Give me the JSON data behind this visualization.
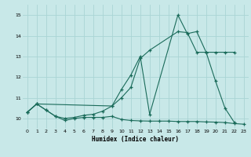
{
  "xlabel": "Humidex (Indice chaleur)",
  "bg_color": "#c8e8e8",
  "grid_color": "#aad4d4",
  "line_color": "#1a6b5a",
  "xlim": [
    -0.5,
    23.5
  ],
  "ylim": [
    9.5,
    15.5
  ],
  "yticks": [
    10,
    11,
    12,
    13,
    14,
    15
  ],
  "xticks": [
    0,
    1,
    2,
    3,
    4,
    5,
    6,
    7,
    8,
    9,
    10,
    11,
    12,
    13,
    14,
    15,
    16,
    17,
    18,
    19,
    20,
    21,
    22,
    23
  ],
  "series1_x": [
    0,
    1,
    2,
    3,
    4,
    5,
    6,
    7,
    8,
    9,
    10,
    11,
    12,
    13,
    14,
    15,
    16,
    17,
    18,
    19,
    20,
    21,
    22,
    23
  ],
  "series1_y": [
    10.3,
    10.7,
    10.4,
    10.1,
    9.9,
    10.0,
    10.05,
    10.05,
    10.05,
    10.1,
    9.95,
    9.9,
    9.88,
    9.87,
    9.87,
    9.87,
    9.85,
    9.85,
    9.85,
    9.83,
    9.82,
    9.8,
    9.75,
    9.72
  ],
  "series2_x": [
    0,
    1,
    2,
    3,
    4,
    5,
    6,
    7,
    8,
    9,
    10,
    11,
    12,
    13,
    16,
    17,
    18,
    19,
    20,
    21,
    22
  ],
  "series2_y": [
    10.3,
    10.7,
    10.4,
    10.1,
    10.0,
    10.05,
    10.15,
    10.2,
    10.35,
    10.6,
    11.0,
    11.5,
    12.9,
    13.3,
    14.2,
    14.15,
    13.2,
    13.2,
    13.2,
    13.2,
    13.2
  ],
  "series3_x": [
    0,
    1,
    9,
    10,
    11,
    12,
    13,
    16,
    17,
    18,
    19,
    20,
    21,
    22
  ],
  "series3_y": [
    10.3,
    10.7,
    10.6,
    11.4,
    12.1,
    13.0,
    10.2,
    15.0,
    14.1,
    14.2,
    13.2,
    11.8,
    10.5,
    9.8
  ]
}
